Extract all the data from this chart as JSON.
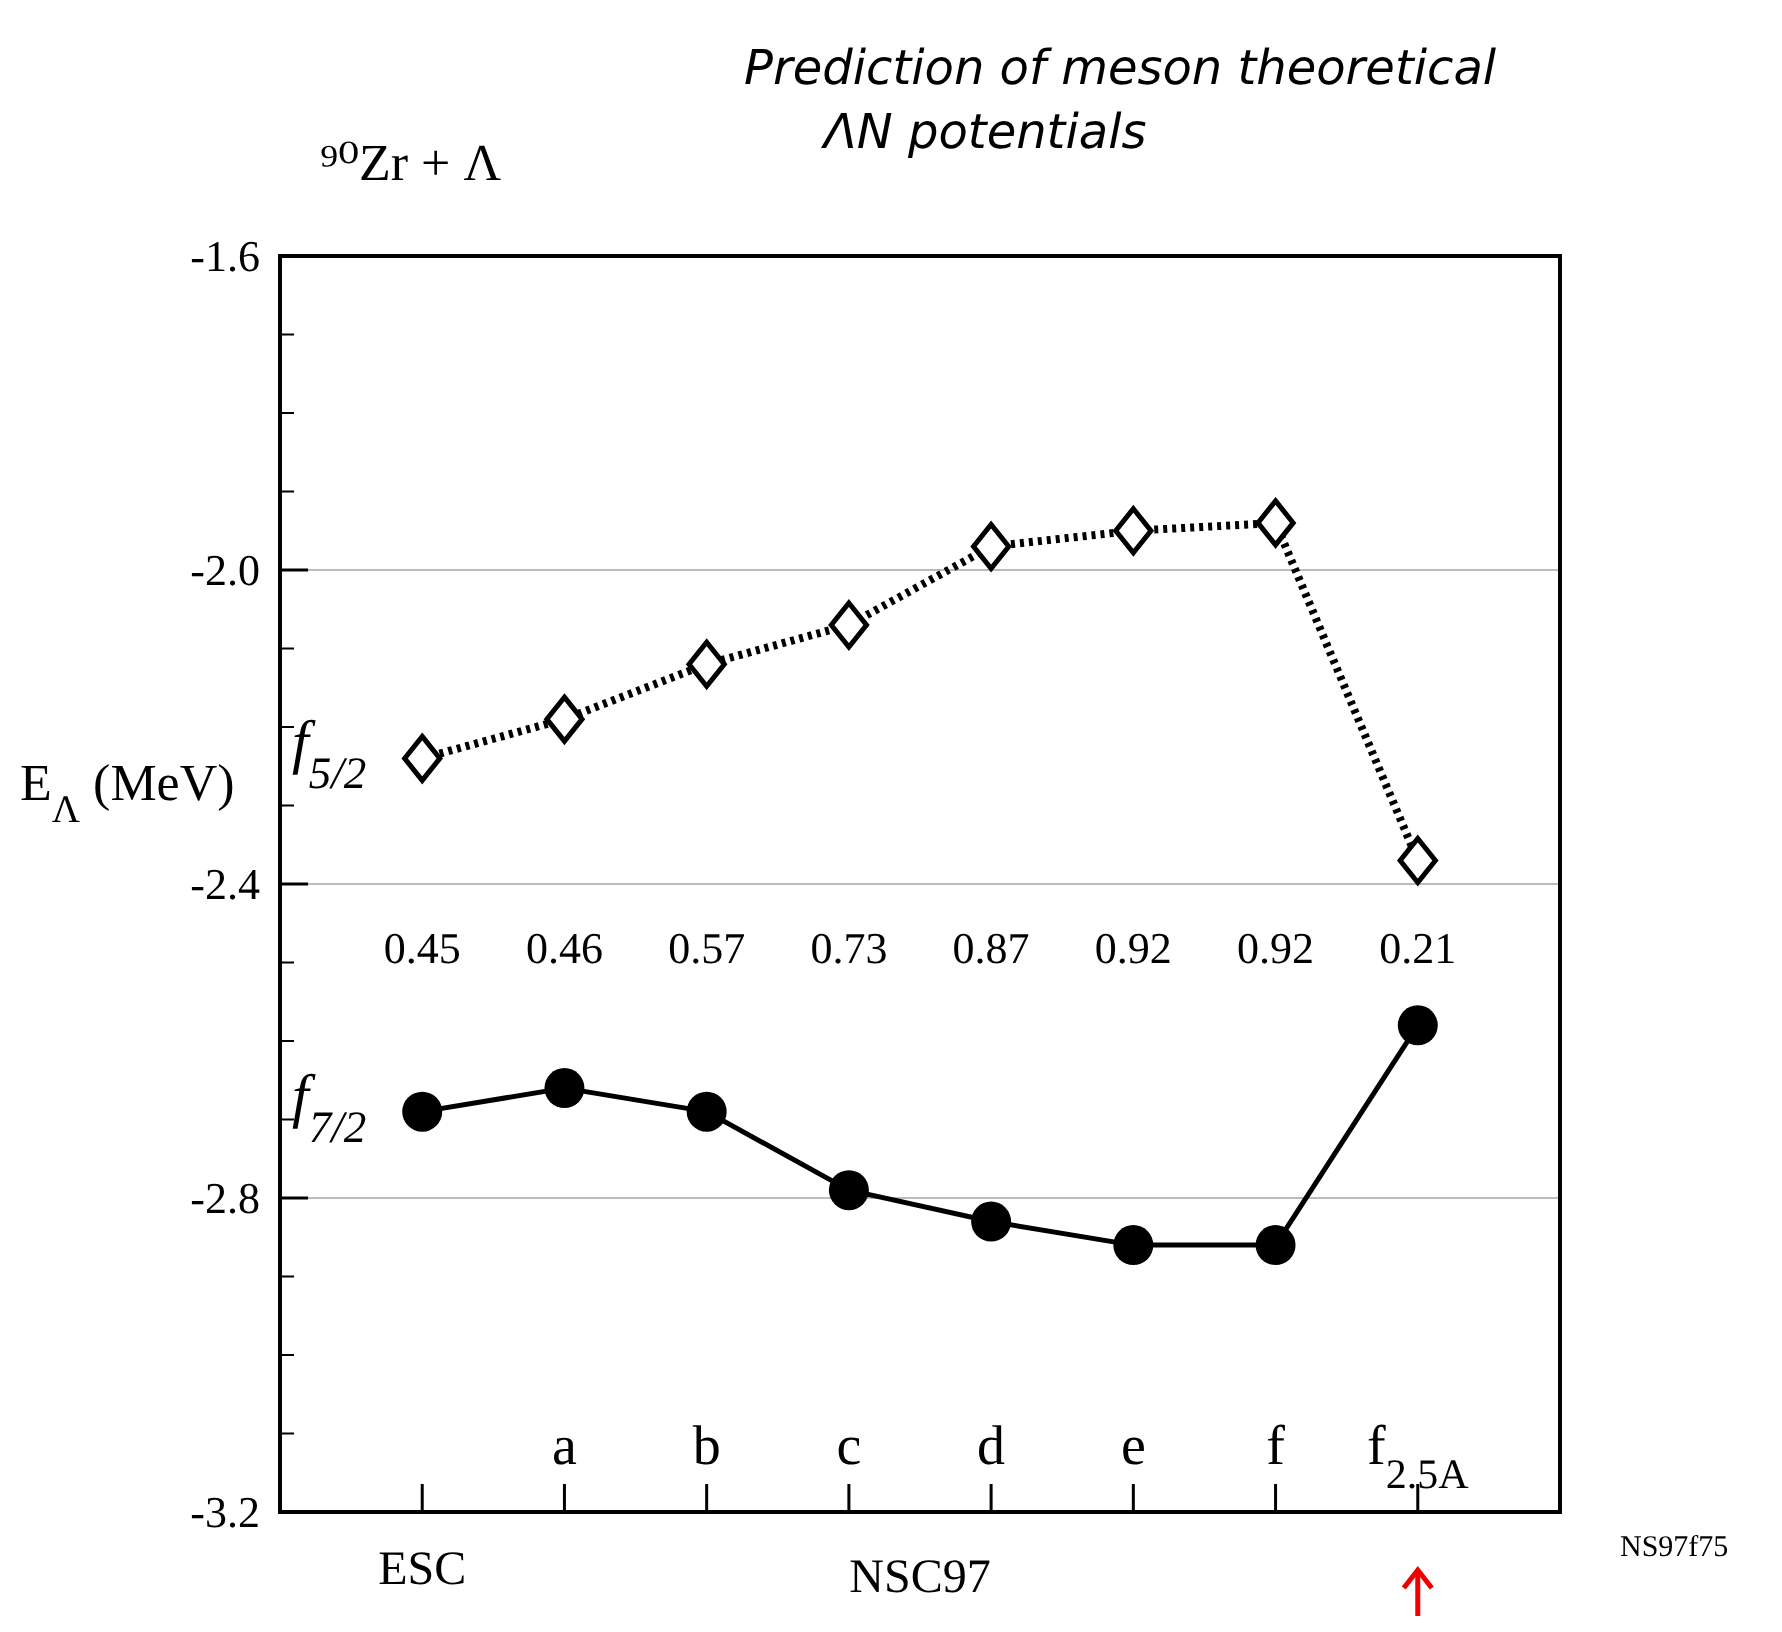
{
  "chart_data": {
    "type": "line",
    "title": "⁹⁰Zr + Λ",
    "subtitle": "Prediction of meson theoretical ΛN potentials",
    "ylabel": "E$_{Λ}$ (MeV)",
    "categories": [
      "ESC",
      "a",
      "b",
      "c",
      "d",
      "e",
      "f",
      "f$_{2.5A}$"
    ],
    "series": [
      {
        "name": "f$_{5/2}$",
        "color": "#000000",
        "marker": "diamond",
        "line_style": "dotted",
        "values": [
          -2.24,
          -2.19,
          -2.12,
          -2.07,
          -1.97,
          -1.95,
          -1.94,
          -2.37
        ]
      },
      {
        "name": "f$_{7/2}$",
        "color": "#000000",
        "marker": "circle",
        "line_style": "solid",
        "values": [
          -2.69,
          -2.66,
          -2.69,
          -2.79,
          -2.83,
          -2.86,
          -2.86,
          -2.58
        ]
      }
    ],
    "ylim": [
      -3.2,
      -1.6
    ],
    "yticks": [
      {
        "value": -1.6,
        "label": "-1.6"
      },
      {
        "value": -2.0,
        "label": "-2.0"
      },
      {
        "value": -2.4,
        "label": "-2.4"
      },
      {
        "value": -2.8,
        "label": "-2.8"
      },
      {
        "value": -3.2,
        "label": "-3.2"
      }
    ],
    "grid": "y",
    "annotations": [
      "0.45",
      "0.46",
      "0.57",
      "0.73",
      "0.87",
      "0.92",
      "0.92",
      "0.21",
      "NSC97",
      "NS97f75"
    ]
  }
}
